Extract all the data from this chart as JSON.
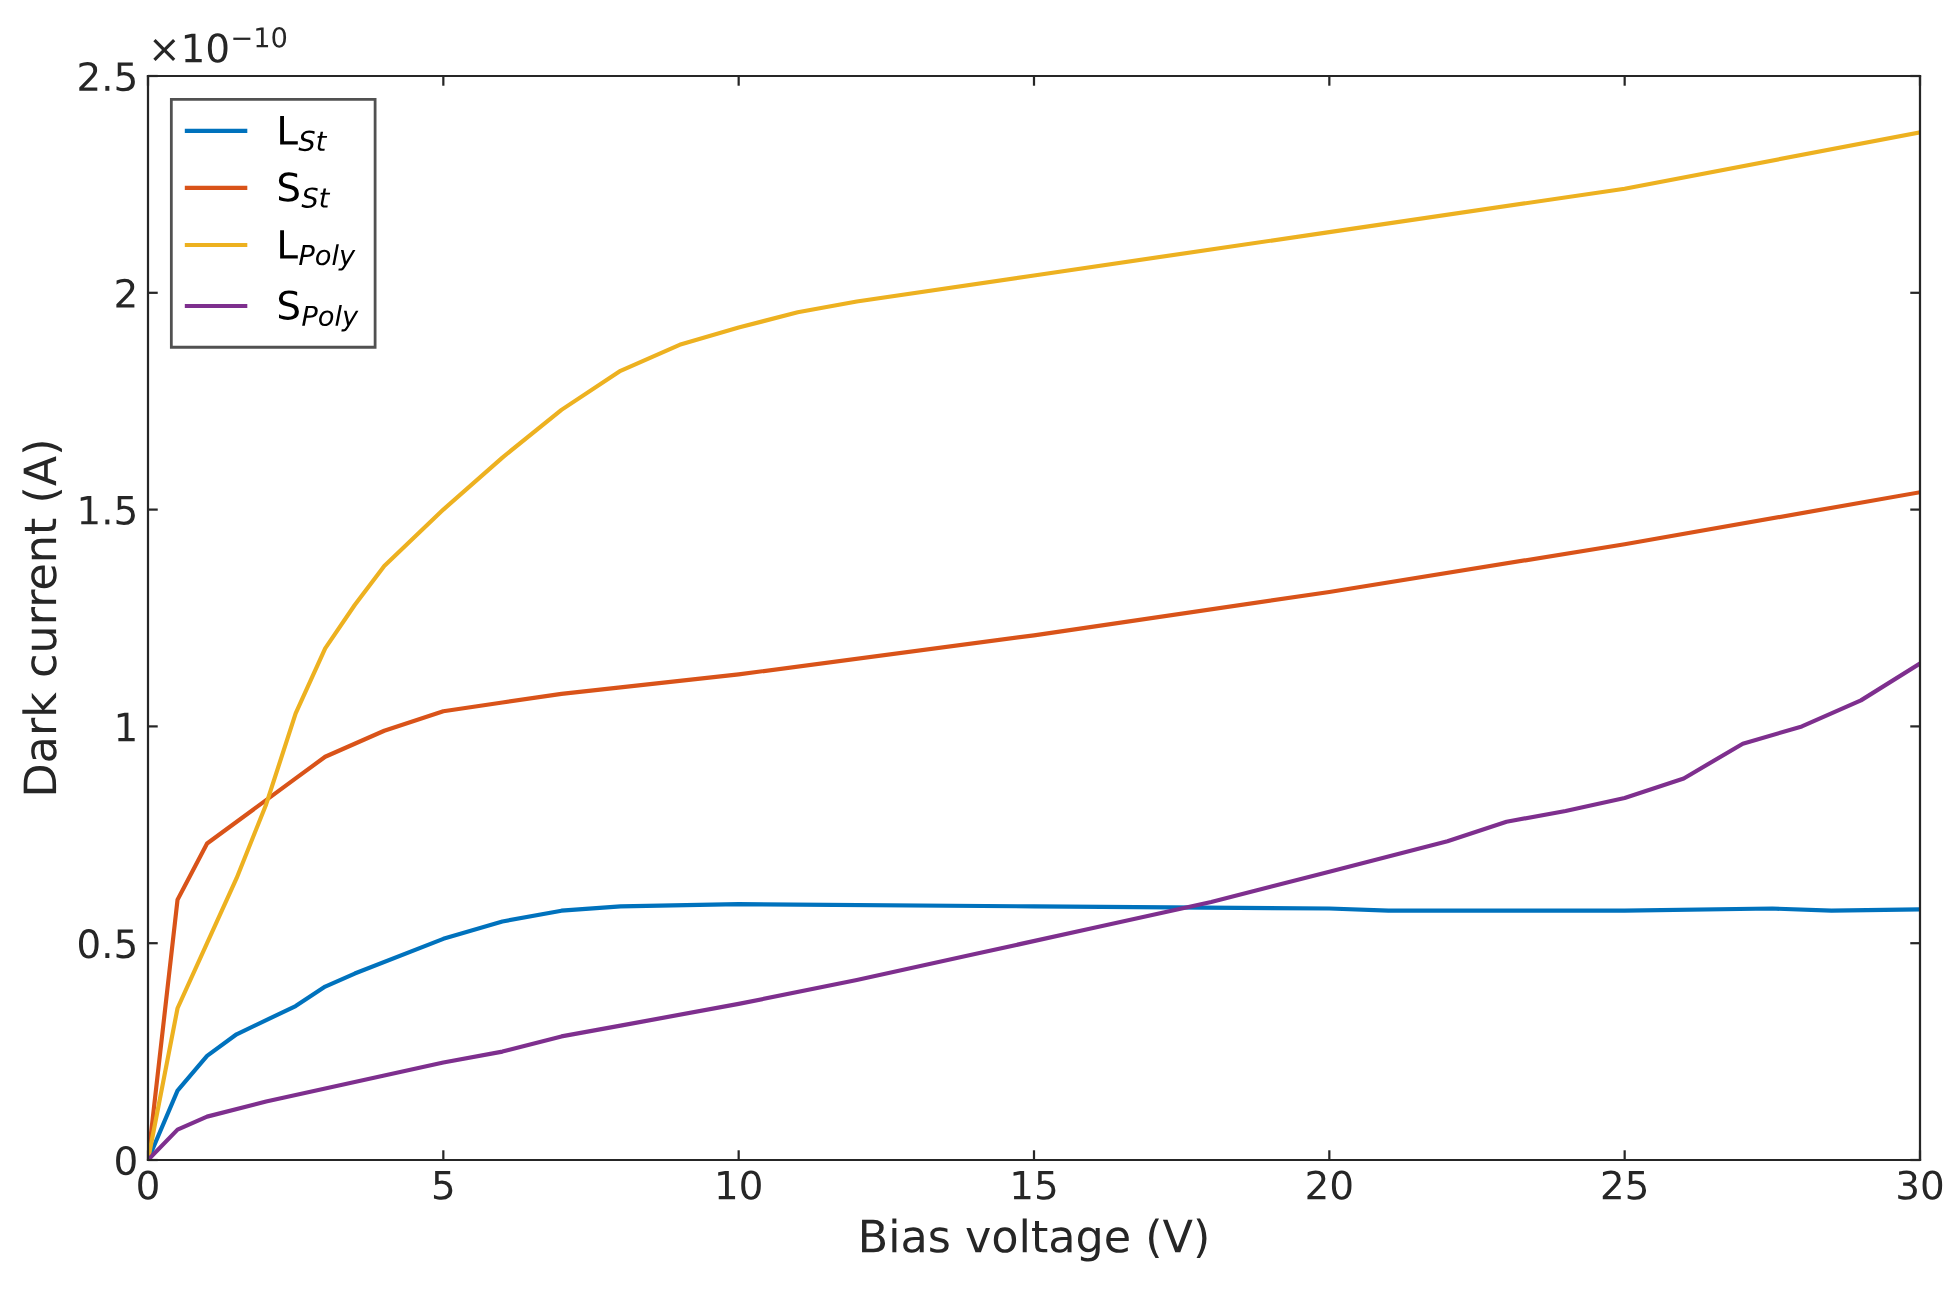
{
  "chart_data": {
    "type": "line",
    "xlabel": "Bias voltage (V)",
    "ylabel": "Dark current (A)",
    "annotations": [
      "×10$^{−10}$"
    ],
    "xlim": [
      0,
      30
    ],
    "xticks": [
      0,
      5,
      10,
      15,
      20,
      25,
      30
    ],
    "ylim": [
      0,
      2.5
    ],
    "yticks": [
      0,
      0.5,
      1,
      1.5,
      2,
      2.5
    ],
    "grid": false,
    "legend": "top left",
    "marker": "none",
    "line_style": "solid",
    "series": [
      {
        "name": "L$_{St}$",
        "color": "#0072bd",
        "x": [
          0,
          0.5,
          1,
          1.5,
          2.5,
          3,
          3.5,
          5,
          6,
          7,
          8,
          10,
          15,
          20,
          21,
          25,
          27.5,
          28.5,
          30
        ],
        "values": [
          0,
          0.16,
          0.24,
          0.29,
          0.355,
          0.4,
          0.43,
          0.51,
          0.55,
          0.575,
          0.585,
          0.59,
          0.585,
          0.58,
          0.575,
          0.575,
          0.58,
          0.575,
          0.578
        ]
      },
      {
        "name": "S$_{St}$",
        "color": "#d95319",
        "x": [
          0,
          0.5,
          1,
          2,
          2.5,
          3,
          3.5,
          4,
          5,
          6,
          7,
          8,
          10,
          15,
          20,
          25,
          30
        ],
        "values": [
          0,
          0.6,
          0.73,
          0.83,
          0.88,
          0.93,
          0.96,
          0.99,
          1.035,
          1.055,
          1.075,
          1.09,
          1.12,
          1.21,
          1.31,
          1.42,
          1.54
        ]
      },
      {
        "name": "L$_{Poly}$",
        "color": "#edb120",
        "x": [
          0,
          0.5,
          1,
          1.5,
          2,
          2.5,
          3,
          3.5,
          4,
          5,
          6,
          7,
          8,
          9,
          10,
          11,
          12,
          15,
          20,
          25,
          30
        ],
        "values": [
          0,
          0.35,
          0.5,
          0.65,
          0.82,
          1.03,
          1.18,
          1.28,
          1.37,
          1.5,
          1.62,
          1.73,
          1.82,
          1.88,
          1.92,
          1.955,
          1.98,
          2.04,
          2.14,
          2.24,
          2.37
        ]
      },
      {
        "name": "S$_{Poly}$",
        "color": "#7e2f8e",
        "x": [
          0,
          0.5,
          1,
          2,
          3,
          4,
          5,
          6,
          7,
          8,
          10,
          12,
          14,
          16,
          18,
          20,
          21,
          22,
          23,
          24,
          25,
          26,
          27,
          28,
          29,
          30
        ],
        "values": [
          0,
          0.07,
          0.1,
          0.135,
          0.165,
          0.195,
          0.225,
          0.25,
          0.285,
          0.31,
          0.36,
          0.415,
          0.475,
          0.535,
          0.595,
          0.665,
          0.7,
          0.735,
          0.78,
          0.805,
          0.835,
          0.88,
          0.96,
          1.0,
          1.06,
          1.145
        ]
      }
    ]
  }
}
